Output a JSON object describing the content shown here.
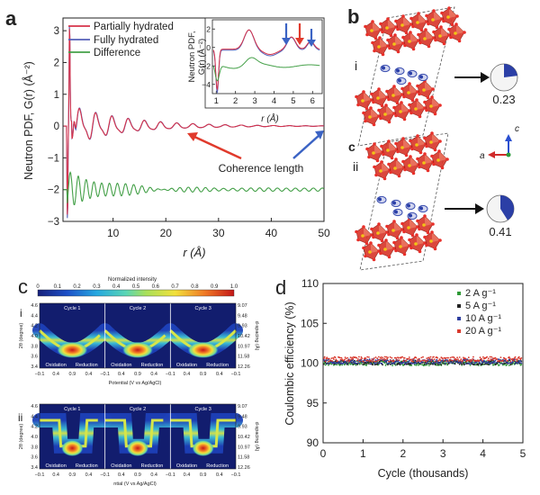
{
  "panel_labels": {
    "a": "a",
    "b": "b",
    "c_struct": "c",
    "c_maps": "c",
    "d": "d"
  },
  "panel_a": {
    "ylabel": "Neutron PDF, G(r) (Å⁻²)",
    "xlabel": "r (Å)",
    "legend": [
      "Partially hydrated",
      "Fully hydrated",
      "Difference"
    ],
    "annotation": "Coherence length",
    "inset_ylabel_1": "Neutron PDF,",
    "inset_ylabel_2": "G(r) (Å⁻²)",
    "inset_xlabel": "r (Å)",
    "colors": {
      "partial": "#d6324a",
      "full": "#5561b8",
      "diff": "#44a048",
      "red_arrow": "#e03a2c",
      "blue_arrow": "#3b63c4"
    }
  },
  "panel_b": {
    "sub_i": "i",
    "sub_ii": "ii",
    "value_i": "0.23",
    "value_ii": "0.41",
    "axis_c": "c",
    "axis_a": "a",
    "occupancy_i": 0.23,
    "occupancy_ii": 0.41
  },
  "panel_c": {
    "colorbar_title": "Normalized intensity",
    "colorbar_ticks": [
      "0",
      "0.1",
      "0.2",
      "0.3",
      "0.4",
      "0.5",
      "0.6",
      "0.7",
      "0.8",
      "0.9",
      "1.0"
    ],
    "sub_i": "i",
    "sub_ii": "ii",
    "ylabel_left": "2θ (degree)",
    "ylabel_right": "d-spacing (Å)",
    "left_ticks": [
      "4.6",
      "4.4",
      "4.2",
      "4.0",
      "3.8",
      "3.6",
      "3.4"
    ],
    "right_ticks": [
      "9.07",
      "9.48",
      "9.93",
      "10.42",
      "10.97",
      "11.58",
      "12.26"
    ],
    "cycles": [
      "Cycle 1",
      "Cycle 2",
      "Cycle 3"
    ],
    "ox_label": "Oxidation",
    "red_label": "Reduction",
    "x_ticks": [
      "−0.1",
      "0.4",
      "0.9",
      "0.4",
      "−0.1",
      "0.4",
      "0.9",
      "0.4",
      "−0.1",
      "0.4",
      "0.9",
      "0.4",
      "−0.1"
    ],
    "xlabel_i": "Potential (V vs Ag/AgCl)",
    "xlabel_ii": "ntial (V vs Ag/AgCl)"
  },
  "chart_data": [
    {
      "type": "line",
      "panel": "a",
      "title": "",
      "xlabel": "r (Å)",
      "ylabel": "Neutron PDF, G(r) (Å⁻²)",
      "xlim": [
        0.5,
        50
      ],
      "ylim": [
        -3,
        3.4
      ],
      "x_ticks": [
        10,
        20,
        30,
        40,
        50
      ],
      "y_ticks": [
        -3,
        -2,
        -1,
        0,
        1,
        2,
        3
      ],
      "series": [
        {
          "name": "Partially hydrated",
          "description": "oscillating PDF decaying toward 0; first peak near r≈1.7 reaching ≈3.1"
        },
        {
          "name": "Fully hydrated",
          "description": "nearly identical to partially hydrated curve"
        },
        {
          "name": "Difference",
          "description": "offset to −2, oscillations decaying by r≈30"
        }
      ],
      "inset": {
        "xlim": [
          0.8,
          6.5
        ],
        "ylim": [
          -5,
          3
        ],
        "x_ticks": [
          1,
          2,
          3,
          4,
          5,
          6
        ],
        "y_ticks": [
          -4,
          -2,
          0,
          2
        ]
      }
    },
    {
      "type": "scatter",
      "panel": "d",
      "title": "",
      "xlabel": "Cycle (thousands)",
      "ylabel": "Coulombic efficiency (%)",
      "xlim": [
        0,
        5
      ],
      "ylim": [
        90,
        110
      ],
      "x_ticks": [
        0,
        1,
        2,
        3,
        4,
        5
      ],
      "y_ticks": [
        90,
        95,
        100,
        105,
        110
      ],
      "legend": "top-right",
      "series": [
        {
          "name": "2 A g⁻¹",
          "color": "#2f9a37",
          "mean": 100.0
        },
        {
          "name": "5 A g⁻¹",
          "color": "#222222",
          "mean": 100.1
        },
        {
          "name": "10 A g⁻¹",
          "color": "#2f3fa0",
          "mean": 100.2
        },
        {
          "name": "20 A g⁻¹",
          "color": "#d93a2e",
          "mean": 100.5
        }
      ]
    }
  ]
}
